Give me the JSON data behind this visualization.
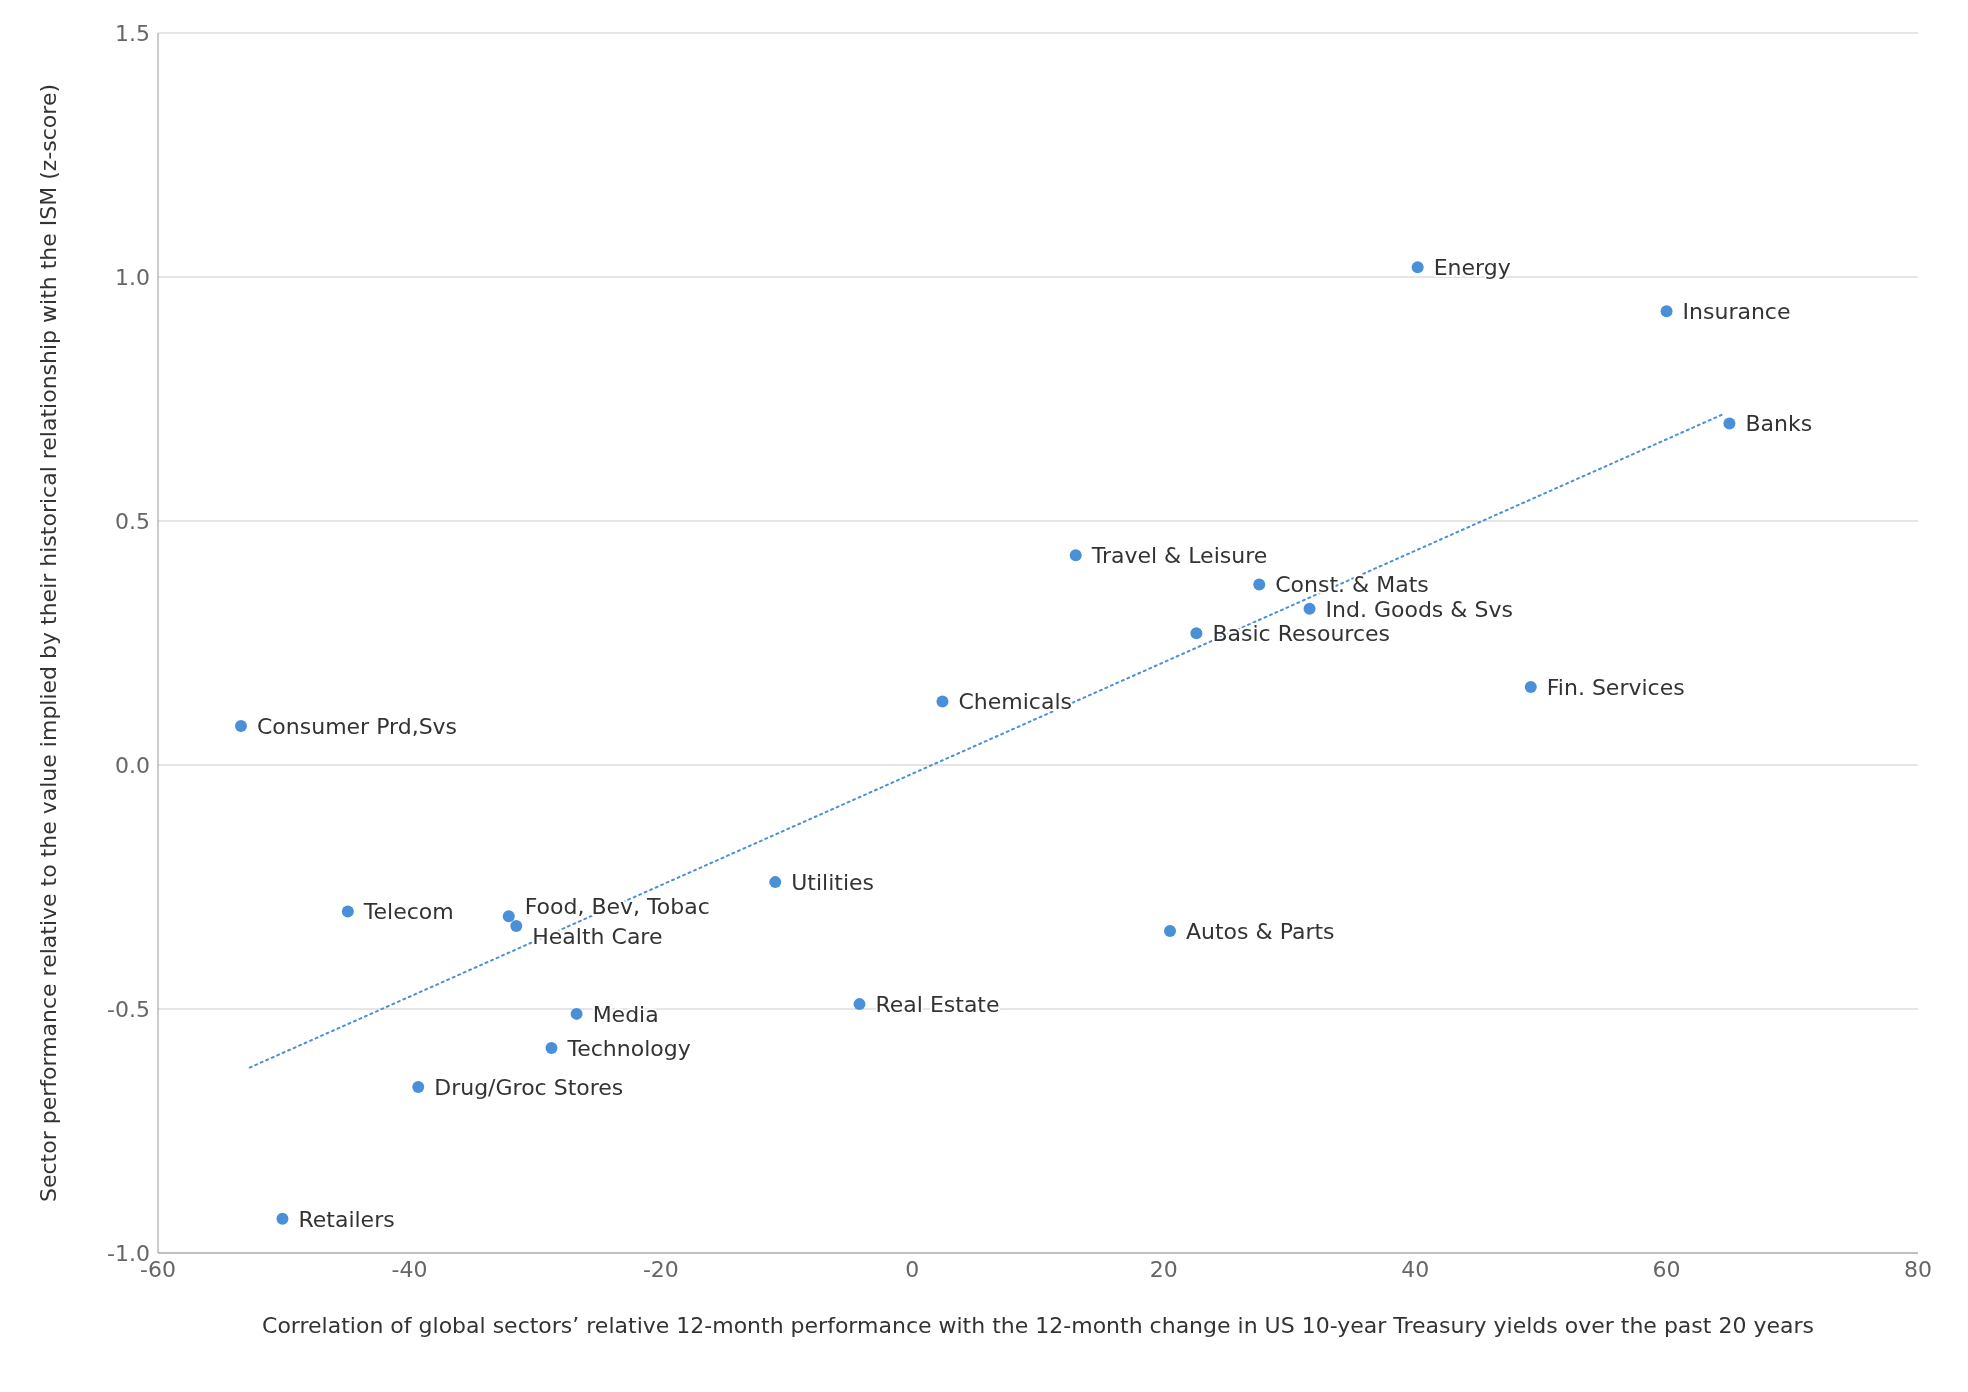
{
  "chart_data": {
    "type": "scatter",
    "xlabel": "Correlation of global sectors’ relative 12-month performance with the 12-month change in US 10-year Treasury yields over the past 20 years",
    "ylabel": "Sector performance relative to the value implied by their historical relationship with the ISM (z-score)",
    "series": [
      {
        "color": "#4a90d9",
        "x": [
          40.2,
          60.0,
          65.0,
          27.6,
          31.6,
          22.6,
          49.2
        ],
        "values": [
          1.02,
          0.93,
          0.7,
          0.37,
          0.32,
          0.27,
          0.16
        ],
        "value_labels": [
          "Energy",
          "Insurance",
          "Banks",
          "Const. & Mats",
          "Ind. Goods & Svs",
          "Basic Resources",
          "Fin. Services"
        ]
      },
      {
        "color": "#4a90d9",
        "x": [
          13.0,
          2.4,
          -53.4,
          -10.9,
          20.5,
          -4.2
        ],
        "values": [
          0.43,
          0.13,
          0.08,
          -0.24,
          -0.34,
          -0.49
        ],
        "value_labels": [
          "Travel & Leisure",
          "Chemicals",
          "Consumer Prd,Svs",
          "Utilities",
          "Autos & Parts",
          "Real Estate"
        ]
      },
      {
        "color": "#4a90d9",
        "x": [
          -44.9,
          -32.1,
          -31.5,
          -26.7,
          -28.7,
          -39.3,
          -50.1
        ],
        "values": [
          -0.3,
          -0.31,
          -0.33,
          -0.51,
          -0.58,
          -0.66,
          -0.93
        ],
        "value_labels": [
          "Telecom",
          "Food, Bev, Tobac",
          "Health Care",
          "Media",
          "Technology",
          "Drug/Groc Stores",
          "Retailers"
        ]
      },
      {
        "type": "line",
        "color": "#4a90d9",
        "line_style": "dotted",
        "marker": "none",
        "x": [
          -52.7,
          64.6
        ],
        "values": [
          -0.62,
          0.72
        ]
      }
    ],
    "xlim": [
      -60,
      80
    ],
    "xticks": [
      -60,
      -40,
      -20,
      0,
      20,
      40,
      60,
      80
    ],
    "ylim": [
      -1.0,
      1.5
    ],
    "yticks": [
      {
        "value": -1.0,
        "label": "-1.0"
      },
      {
        "value": -0.5,
        "label": "-0.5"
      },
      {
        "value": 0.0,
        "label": "0.0"
      },
      {
        "value": 0.5,
        "label": "0.5"
      },
      {
        "value": 1.0,
        "label": "1.0"
      },
      {
        "value": 1.5,
        "label": "1.5"
      }
    ],
    "grid": "y",
    "marker": "circle",
    "legend": false
  }
}
